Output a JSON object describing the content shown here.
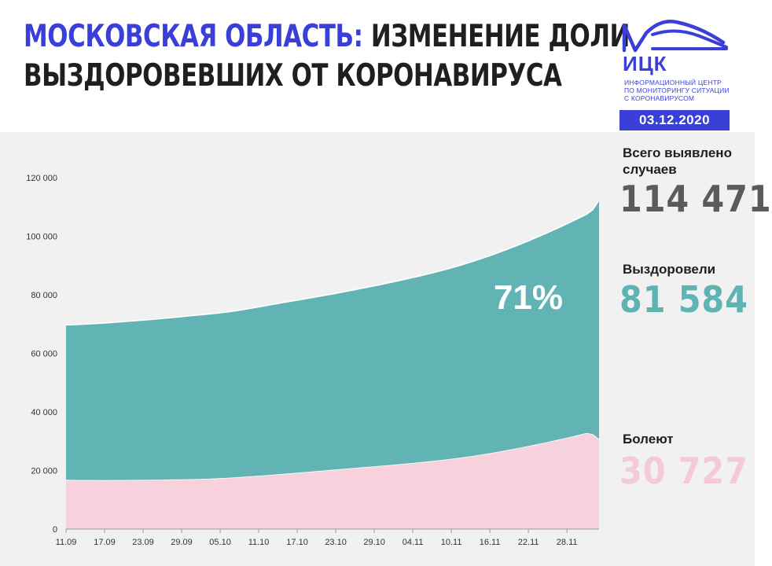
{
  "header": {
    "title_accent": "Московская область:",
    "title_rest_line1": "изменение доли",
    "title_line2": "выздоровевших от коронавируса",
    "logo_name": "ИЦК",
    "logo_subtitle_lines": [
      "Информационный центр",
      "по мониторингу ситуации",
      "с коронавирусом"
    ],
    "date": "03.12.2020"
  },
  "stats": {
    "total": {
      "label_line1": "Всего выявлено",
      "label_line2": "случаев",
      "value": "114 471",
      "color": "#5b5b5b"
    },
    "recovered": {
      "label": "Выздоровели",
      "value": "81 584",
      "color": "#5fb3b3"
    },
    "sick": {
      "label": "Болеют",
      "value": "30 727",
      "color": "#f4cad6"
    }
  },
  "chart_data": {
    "type": "area",
    "x": [
      "11.09",
      "12.09",
      "13.09",
      "14.09",
      "15.09",
      "16.09",
      "17.09",
      "18.09",
      "19.09",
      "20.09",
      "21.09",
      "22.09",
      "23.09",
      "24.09",
      "25.09",
      "26.09",
      "27.09",
      "28.09",
      "29.09",
      "30.09",
      "01.10",
      "02.10",
      "03.10",
      "04.10",
      "05.10",
      "06.10",
      "07.10",
      "08.10",
      "09.10",
      "10.10",
      "11.10",
      "12.10",
      "13.10",
      "14.10",
      "15.10",
      "16.10",
      "17.10",
      "18.10",
      "19.10",
      "20.10",
      "21.10",
      "22.10",
      "23.10",
      "24.10",
      "25.10",
      "26.10",
      "27.10",
      "28.10",
      "29.10",
      "30.10",
      "31.10",
      "01.11",
      "02.11",
      "03.11",
      "04.11",
      "05.11",
      "06.11",
      "07.11",
      "08.11",
      "09.11",
      "10.11",
      "11.11",
      "12.11",
      "13.11",
      "14.11",
      "15.11",
      "16.11",
      "17.11",
      "18.11",
      "19.11",
      "20.11",
      "21.11",
      "22.11",
      "23.11",
      "24.11",
      "25.11",
      "26.11",
      "27.11",
      "28.11",
      "29.11",
      "30.11",
      "01.12",
      "02.12",
      "03.12"
    ],
    "x_ticks": [
      "11.09",
      "17.09",
      "23.09",
      "29.09",
      "05.10",
      "11.10",
      "17.10",
      "23.10",
      "29.10",
      "04.11",
      "10.11",
      "16.11",
      "22.11",
      "28.11"
    ],
    "stacked": true,
    "series": [
      {
        "name": "Болеют",
        "color": "#f7d2dd",
        "values": [
          16800,
          16780,
          16760,
          16740,
          16730,
          16720,
          16710,
          16720,
          16740,
          16760,
          16780,
          16790,
          16800,
          16810,
          16830,
          16860,
          16900,
          16940,
          16980,
          17020,
          17060,
          17120,
          17180,
          17270,
          17380,
          17500,
          17630,
          17770,
          17910,
          18060,
          18210,
          18370,
          18540,
          18710,
          18890,
          19070,
          19250,
          19430,
          19610,
          19790,
          19980,
          20160,
          20340,
          20520,
          20700,
          20880,
          21060,
          21240,
          21420,
          21600,
          21790,
          21980,
          22180,
          22380,
          22580,
          22790,
          23010,
          23240,
          23480,
          23730,
          23990,
          24270,
          24570,
          24880,
          25210,
          25550,
          25910,
          26280,
          26670,
          27070,
          27490,
          27920,
          28360,
          28810,
          29270,
          29740,
          30220,
          30710,
          31210,
          31720,
          32250,
          32780,
          32500,
          30727
        ]
      },
      {
        "name": "Выздоровели",
        "color": "#62b4b4",
        "values": [
          52900,
          53000,
          53120,
          53250,
          53380,
          53500,
          53650,
          53800,
          53950,
          54100,
          54250,
          54400,
          54560,
          54720,
          54880,
          55050,
          55220,
          55390,
          55560,
          55730,
          55900,
          56050,
          56200,
          56320,
          56450,
          56600,
          56780,
          56980,
          57200,
          57420,
          57650,
          57880,
          58100,
          58320,
          58520,
          58720,
          58920,
          59120,
          59320,
          59520,
          59720,
          59930,
          60150,
          60380,
          60620,
          60870,
          61120,
          61380,
          61640,
          61910,
          62180,
          62460,
          62740,
          63030,
          63320,
          63610,
          63910,
          64220,
          64540,
          64870,
          65210,
          65560,
          65920,
          66290,
          66670,
          67060,
          67460,
          67870,
          68290,
          68720,
          69160,
          69610,
          70070,
          70540,
          71020,
          71510,
          72010,
          72520,
          73040,
          73570,
          74110,
          74660,
          76500,
          81584
        ]
      }
    ],
    "total_values_last": 114471,
    "annotation": "71%",
    "ylim": [
      0,
      120000
    ],
    "y_ticks": [
      0,
      20000,
      40000,
      60000,
      80000,
      100000,
      120000
    ],
    "y_tick_labels": [
      "0",
      "20 000",
      "40 000",
      "60 000",
      "80 000",
      "100 000",
      "120 000"
    ],
    "grid": false
  }
}
